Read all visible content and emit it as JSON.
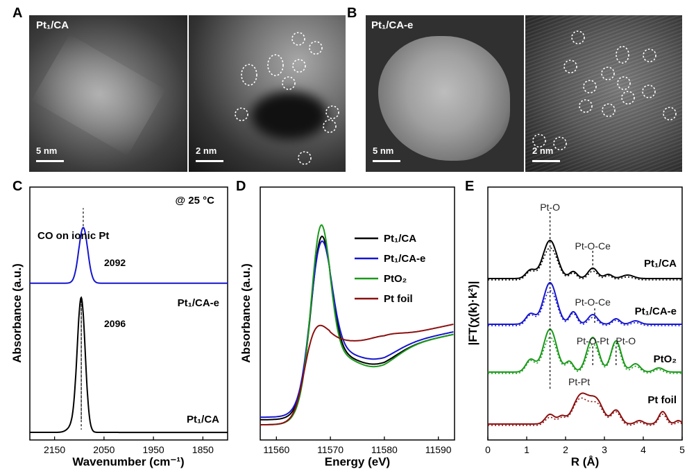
{
  "panels": {
    "A": {
      "letter": "A",
      "sample_label": "Pt₁/CA",
      "scales": [
        "5 nm",
        "2 nm"
      ]
    },
    "B": {
      "letter": "B",
      "sample_label": "Pt₁/CA-e",
      "scales": [
        "5 nm",
        "2 nm"
      ]
    },
    "C": {
      "letter": "C"
    },
    "D": {
      "letter": "D"
    },
    "E": {
      "letter": "E"
    }
  },
  "chart_data": [
    {
      "panel": "C",
      "type": "line",
      "xlabel": "Wavenumber (cm⁻¹)",
      "ylabel": "Absorbance (a.u.)",
      "xlim": [
        2200,
        1800
      ],
      "xticks": [
        2150,
        2050,
        1950,
        1850
      ],
      "annotation_temp": "@ 25 °C",
      "annotation_co": "CO on ionic Pt",
      "series": [
        {
          "name": "Pt₁/CA-e",
          "color": "#1515d0",
          "peak": 2092,
          "peak_label": "2092",
          "offset": 0.62,
          "height": 0.22,
          "width": 9
        },
        {
          "name": "Pt₁/CA",
          "color": "#000000",
          "peak": 2096,
          "peak_label": "2096",
          "offset": 0.03,
          "height": 0.52,
          "width": 8
        }
      ]
    },
    {
      "panel": "D",
      "type": "line",
      "xlabel": "Energy (eV)",
      "ylabel": "Absorbance (a.u.)",
      "xlim": [
        11557,
        11593
      ],
      "xticks": [
        11560,
        11570,
        11580,
        11590
      ],
      "legend": "right",
      "series": [
        {
          "name": "Pt₁/CA",
          "color": "#000000"
        },
        {
          "name": "Pt₁/CA-e",
          "color": "#1515d0"
        },
        {
          "name": "PtO₂",
          "color": "#1a9a1a"
        },
        {
          "name": "Pt foil",
          "color": "#8b1010"
        }
      ]
    },
    {
      "panel": "E",
      "type": "line",
      "xlabel": "R (Å)",
      "ylabel": "|FT(χ(k)·k²)|",
      "xlim": [
        0,
        5
      ],
      "xticks": [
        0,
        1,
        2,
        3,
        4,
        5
      ],
      "annotations": [
        {
          "text": "Pt-O",
          "x": 1.6
        },
        {
          "text": "Pt-O-Ce",
          "x": 2.7
        },
        {
          "text": "Pt-O-Ce",
          "x": 2.7
        },
        {
          "text": "Pt-O-Pt",
          "x": 2.7
        },
        {
          "text": "Pt-O",
          "x": 3.3
        },
        {
          "text": "Pt-Pt",
          "x": 2.4
        }
      ],
      "series": [
        {
          "name": "Pt₁/CA",
          "color": "#000000"
        },
        {
          "name": "Pt₁/CA-e",
          "color": "#1515d0"
        },
        {
          "name": "PtO₂",
          "color": "#1a9a1a"
        },
        {
          "name": "Pt foil",
          "color": "#8b1010"
        }
      ]
    }
  ]
}
